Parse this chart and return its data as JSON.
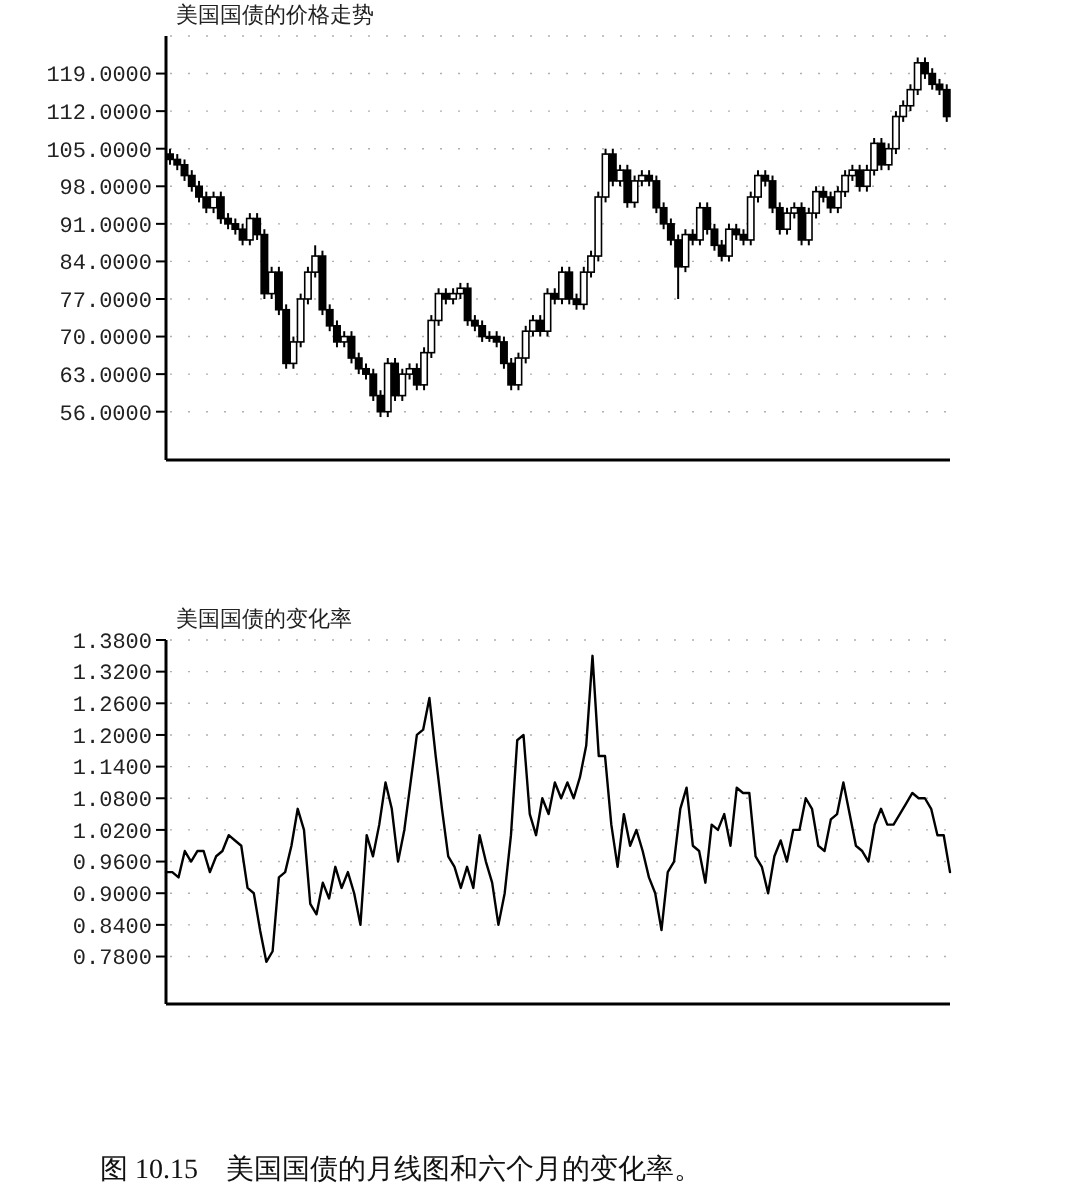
{
  "chart_data": [
    {
      "type": "candlestick",
      "title": "美国国债的价格走势",
      "categories": [
        null,
        null,
        null,
        null,
        null,
        null,
        null,
        null,
        null,
        null,
        null,
        null,
        null,
        null,
        null,
        null,
        null,
        null,
        null,
        null,
        null,
        null,
        null,
        null,
        null,
        null,
        null,
        null,
        null,
        null,
        null,
        null,
        null,
        null,
        null,
        null,
        null,
        null,
        null,
        null,
        null,
        null,
        null,
        null,
        null,
        null,
        null,
        null,
        null,
        null,
        null,
        null,
        null,
        null,
        null,
        null,
        null,
        null,
        null,
        null,
        null,
        null,
        null,
        null,
        null,
        null,
        null,
        null,
        null,
        null,
        null,
        null,
        null,
        null,
        null,
        null,
        null,
        null,
        null,
        null,
        null,
        null,
        null,
        null,
        null,
        null,
        null,
        null,
        null,
        null,
        null,
        null,
        null,
        null,
        null,
        null,
        null,
        null,
        null,
        null,
        null,
        null,
        null,
        null,
        null,
        null,
        null,
        null
      ],
      "ohlc": [
        [
          104,
          105,
          102,
          103
        ],
        [
          103,
          104,
          101,
          102
        ],
        [
          102,
          103,
          99,
          100
        ],
        [
          100,
          101,
          97,
          98
        ],
        [
          98,
          99,
          95,
          96
        ],
        [
          96,
          97,
          93,
          94
        ],
        [
          94,
          97,
          93,
          96
        ],
        [
          96,
          97,
          91,
          92
        ],
        [
          92,
          93,
          90,
          91
        ],
        [
          91,
          92,
          89,
          90
        ],
        [
          90,
          91,
          87,
          88
        ],
        [
          88,
          93,
          87,
          92
        ],
        [
          92,
          93,
          88,
          89
        ],
        [
          89,
          90,
          77,
          78
        ],
        [
          78,
          83,
          77,
          82
        ],
        [
          82,
          83,
          74,
          75
        ],
        [
          75,
          76,
          64,
          65
        ],
        [
          65,
          70,
          64,
          69
        ],
        [
          69,
          78,
          68,
          77
        ],
        [
          77,
          83,
          76,
          82
        ],
        [
          82,
          87,
          81,
          85
        ],
        [
          85,
          86,
          74,
          75
        ],
        [
          75,
          76,
          71,
          72
        ],
        [
          72,
          73,
          68,
          69
        ],
        [
          69,
          71,
          68,
          70
        ],
        [
          70,
          71,
          65,
          66
        ],
        [
          66,
          67,
          63,
          64
        ],
        [
          64,
          65,
          62,
          63
        ],
        [
          63,
          64,
          58,
          59
        ],
        [
          59,
          60,
          55,
          56
        ],
        [
          56,
          66,
          55,
          65
        ],
        [
          65,
          66,
          58,
          59
        ],
        [
          59,
          64,
          58,
          63
        ],
        [
          63,
          65,
          62,
          64
        ],
        [
          64,
          65,
          60,
          61
        ],
        [
          61,
          68,
          60,
          67
        ],
        [
          67,
          74,
          66,
          73
        ],
        [
          73,
          79,
          72,
          78
        ],
        [
          78,
          79,
          76,
          77
        ],
        [
          77,
          79,
          76,
          78
        ],
        [
          78,
          80,
          77,
          79
        ],
        [
          79,
          80,
          72,
          73
        ],
        [
          73,
          74,
          71,
          72
        ],
        [
          72,
          73,
          69,
          70
        ],
        [
          70,
          71,
          69,
          70
        ],
        [
          70,
          71,
          68,
          69
        ],
        [
          69,
          70,
          64,
          65
        ],
        [
          65,
          66,
          60,
          61
        ],
        [
          61,
          67,
          60,
          66
        ],
        [
          66,
          72,
          65,
          71
        ],
        [
          71,
          74,
          70,
          73
        ],
        [
          73,
          74,
          70,
          71
        ],
        [
          71,
          79,
          70,
          78
        ],
        [
          78,
          79,
          76,
          77
        ],
        [
          77,
          83,
          76,
          82
        ],
        [
          82,
          83,
          76,
          77
        ],
        [
          77,
          78,
          75,
          76
        ],
        [
          76,
          83,
          75,
          82
        ],
        [
          82,
          86,
          81,
          85
        ],
        [
          85,
          97,
          84,
          96
        ],
        [
          96,
          105,
          95,
          104
        ],
        [
          104,
          105,
          98,
          99
        ],
        [
          99,
          102,
          98,
          101
        ],
        [
          101,
          102,
          94,
          95
        ],
        [
          95,
          100,
          94,
          99
        ],
        [
          99,
          101,
          98,
          100
        ],
        [
          100,
          101,
          98,
          99
        ],
        [
          99,
          100,
          93,
          94
        ],
        [
          94,
          95,
          90,
          91
        ],
        [
          91,
          92,
          87,
          88
        ],
        [
          88,
          89,
          77,
          83
        ],
        [
          83,
          90,
          82,
          89
        ],
        [
          89,
          90,
          87,
          88
        ],
        [
          88,
          95,
          87,
          94
        ],
        [
          94,
          95,
          89,
          90
        ],
        [
          90,
          91,
          86,
          87
        ],
        [
          87,
          88,
          84,
          85
        ],
        [
          85,
          91,
          84,
          90
        ],
        [
          90,
          91,
          88,
          89
        ],
        [
          89,
          90,
          87,
          88
        ],
        [
          88,
          97,
          87,
          96
        ],
        [
          96,
          101,
          95,
          100
        ],
        [
          100,
          101,
          98,
          99
        ],
        [
          99,
          100,
          93,
          94
        ],
        [
          94,
          95,
          89,
          90
        ],
        [
          90,
          94,
          89,
          93
        ],
        [
          93,
          95,
          92,
          94
        ],
        [
          94,
          95,
          87,
          88
        ],
        [
          88,
          94,
          87,
          93
        ],
        [
          93,
          98,
          92,
          97
        ],
        [
          97,
          98,
          95,
          96
        ],
        [
          96,
          97,
          93,
          94
        ],
        [
          94,
          98,
          93,
          97
        ],
        [
          97,
          101,
          96,
          100
        ],
        [
          100,
          102,
          99,
          101
        ],
        [
          101,
          102,
          97,
          98
        ],
        [
          98,
          102,
          97,
          101
        ],
        [
          101,
          107,
          100,
          106
        ],
        [
          106,
          107,
          101,
          102
        ],
        [
          102,
          106,
          101,
          105
        ],
        [
          105,
          112,
          104,
          111
        ],
        [
          111,
          114,
          110,
          113
        ],
        [
          113,
          117,
          112,
          116
        ],
        [
          116,
          122,
          115,
          121
        ],
        [
          121,
          122,
          118,
          119
        ],
        [
          119,
          120,
          116,
          117
        ],
        [
          117,
          118,
          115,
          116
        ],
        [
          116,
          117,
          110,
          111
        ]
      ],
      "color": "#000000",
      "ylim": [
        47,
        126
      ],
      "yticks": [
        {
          "value": 56,
          "label": "56.0000"
        },
        {
          "value": 63,
          "label": "63.0000"
        },
        {
          "value": 70,
          "label": "70.0000"
        },
        {
          "value": 77,
          "label": "77.0000"
        },
        {
          "value": 84,
          "label": "84.0000"
        },
        {
          "value": 91,
          "label": "91.0000"
        },
        {
          "value": 98,
          "label": "98.0000"
        },
        {
          "value": 105,
          "label": "105.0000"
        },
        {
          "value": 112,
          "label": "112.0000"
        },
        {
          "value": 119,
          "label": "119.0000"
        }
      ],
      "grid": "y",
      "tick_labels": "y"
    },
    {
      "type": "line",
      "title": "美国国债的变化率",
      "categories": [
        null,
        null,
        null,
        null,
        null,
        null,
        null,
        null,
        null,
        null,
        null,
        null,
        null,
        null,
        null,
        null,
        null,
        null,
        null,
        null,
        null,
        null,
        null,
        null,
        null,
        null,
        null,
        null,
        null,
        null,
        null,
        null,
        null,
        null,
        null,
        null,
        null,
        null,
        null,
        null,
        null,
        null,
        null,
        null,
        null,
        null,
        null,
        null,
        null,
        null,
        null,
        null,
        null,
        null,
        null,
        null,
        null,
        null,
        null,
        null,
        null,
        null,
        null,
        null,
        null,
        null,
        null,
        null,
        null,
        null,
        null,
        null,
        null,
        null,
        null,
        null,
        null,
        null,
        null,
        null,
        null,
        null,
        null,
        null,
        null,
        null,
        null,
        null,
        null,
        null,
        null,
        null,
        null,
        null,
        null,
        null,
        null,
        null,
        null,
        null,
        null,
        null,
        null,
        null,
        null,
        null,
        null,
        null,
        null,
        null,
        null,
        null,
        null,
        null,
        null,
        null,
        null,
        null,
        null,
        null,
        null,
        null,
        null,
        null,
        null,
        null
      ],
      "series": [
        {
          "color": "#000000",
          "values": [
            0.94,
            0.94,
            0.93,
            0.98,
            0.96,
            0.98,
            0.98,
            0.94,
            0.97,
            0.98,
            1.01,
            1.0,
            0.99,
            0.91,
            0.9,
            0.83,
            0.77,
            0.79,
            0.93,
            0.94,
            0.99,
            1.06,
            1.02,
            0.88,
            0.86,
            0.92,
            0.89,
            0.95,
            0.91,
            0.94,
            0.9,
            0.84,
            1.01,
            0.97,
            1.03,
            1.11,
            1.06,
            0.96,
            1.02,
            1.11,
            1.2,
            1.21,
            1.27,
            1.16,
            1.06,
            0.97,
            0.95,
            0.91,
            0.95,
            0.91,
            1.01,
            0.96,
            0.92,
            0.84,
            0.9,
            1.01,
            1.19,
            1.2,
            1.05,
            1.01,
            1.08,
            1.05,
            1.11,
            1.08,
            1.11,
            1.08,
            1.12,
            1.18,
            1.35,
            1.16,
            1.16,
            1.03,
            0.95,
            1.05,
            0.99,
            1.02,
            0.98,
            0.93,
            0.9,
            0.83,
            0.94,
            0.96,
            1.06,
            1.1,
            0.99,
            0.98,
            0.92,
            1.03,
            1.02,
            1.05,
            0.99,
            1.1,
            1.09,
            1.09,
            0.97,
            0.95,
            0.9,
            0.97,
            1.0,
            0.96,
            1.02,
            1.02,
            1.08,
            1.06,
            0.99,
            0.98,
            1.04,
            1.05,
            1.11,
            1.05,
            0.99,
            0.98,
            0.96,
            1.03,
            1.06,
            1.03,
            1.03,
            1.05,
            1.07,
            1.09,
            1.08,
            1.08,
            1.06,
            1.01,
            1.01,
            0.94
          ]
        }
      ],
      "ylim": [
        0.69,
        1.38
      ],
      "yticks": [
        {
          "value": 0.78,
          "label": "0.7800"
        },
        {
          "value": 0.84,
          "label": "0.8400"
        },
        {
          "value": 0.9,
          "label": "0.9000"
        },
        {
          "value": 0.96,
          "label": "0.9600"
        },
        {
          "value": 1.02,
          "label": "1.0200"
        },
        {
          "value": 1.08,
          "label": "1.0800"
        },
        {
          "value": 1.14,
          "label": "1.1400"
        },
        {
          "value": 1.2,
          "label": "1.2000"
        },
        {
          "value": 1.26,
          "label": "1.2600"
        },
        {
          "value": 1.32,
          "label": "1.3200"
        },
        {
          "value": 1.38,
          "label": "1.3800"
        }
      ],
      "grid": "y",
      "tick_labels": "y",
      "line_style": "solid",
      "annotations": [
        "图 10.15　美国国债的月线图和六个月的变化率。"
      ]
    }
  ]
}
